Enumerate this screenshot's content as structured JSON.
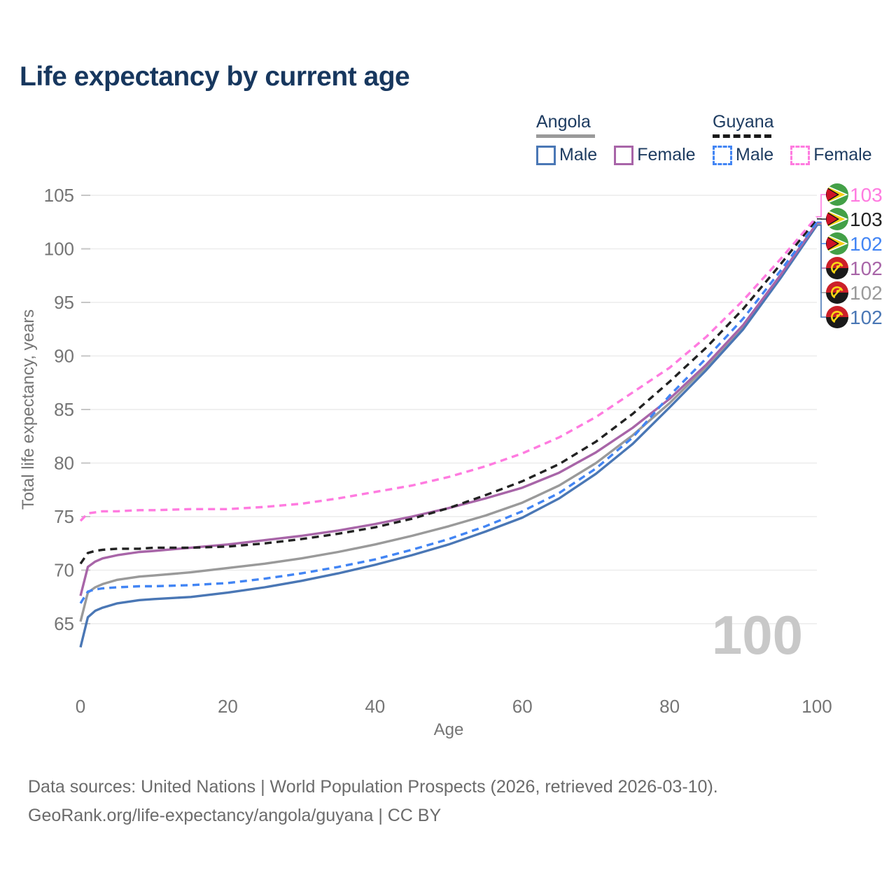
{
  "title": "Life expectancy by current age",
  "watermark_age": "100",
  "legend": {
    "groups": [
      {
        "label": "Angola",
        "line_style": "solid",
        "line_color": "#9a9a9a",
        "items": [
          {
            "label": "Male",
            "color": "#4a77b5",
            "style": "solid"
          },
          {
            "label": "Female",
            "color": "#a865a8",
            "style": "solid"
          }
        ]
      },
      {
        "label": "Guyana",
        "line_style": "dashed",
        "line_color": "#1a1a1a",
        "items": [
          {
            "label": "Male",
            "color": "#4285f4",
            "style": "dashed"
          },
          {
            "label": "Female",
            "color": "#ff7be0",
            "style": "dashed"
          }
        ]
      }
    ]
  },
  "footer": {
    "line1": "Data sources: United Nations | World Population Prospects (2026, retrieved 2026-03-10).",
    "line2": "GeoRank.org/life-expectancy/angola/guyana | CC BY"
  },
  "chart_data": {
    "type": "line",
    "title": "Life expectancy by current age",
    "xlabel": "Age",
    "ylabel": "Total life expectancy, years",
    "xlim": [
      0,
      100
    ],
    "ylim": [
      62,
      106
    ],
    "xticks": [
      0,
      20,
      40,
      60,
      80,
      100
    ],
    "yticks": [
      65,
      70,
      75,
      80,
      85,
      90,
      95,
      100,
      105
    ],
    "grid": true,
    "legend_position": "top-right",
    "x": [
      0,
      1,
      2,
      3,
      5,
      8,
      10,
      15,
      20,
      25,
      30,
      35,
      40,
      45,
      50,
      55,
      60,
      65,
      70,
      75,
      80,
      85,
      90,
      95,
      100
    ],
    "series": [
      {
        "name": "Angola Male",
        "country": "angola",
        "sex": "male",
        "style": "solid",
        "color": "#4a77b5",
        "end_label": "102",
        "values": [
          62.8,
          65.6,
          66.2,
          66.5,
          66.9,
          67.2,
          67.3,
          67.5,
          67.9,
          68.4,
          69.0,
          69.7,
          70.5,
          71.4,
          72.4,
          73.6,
          74.9,
          76.7,
          79.0,
          81.8,
          85.2,
          88.7,
          92.5,
          97.2,
          102.2
        ]
      },
      {
        "name": "Angola Female",
        "country": "angola",
        "sex": "female",
        "style": "solid",
        "color": "#a865a8",
        "end_label": "102",
        "values": [
          67.6,
          70.3,
          70.8,
          71.1,
          71.4,
          71.7,
          71.8,
          72.1,
          72.4,
          72.8,
          73.2,
          73.7,
          74.3,
          75.0,
          75.8,
          76.7,
          77.7,
          79.1,
          81.0,
          83.3,
          86.0,
          89.2,
          92.9,
          97.5,
          102.4
        ]
      },
      {
        "name": "Angola Both sexes",
        "country": "angola",
        "sex": "both",
        "style": "solid",
        "color": "#9a9a9a",
        "end_label": "102",
        "values": [
          65.2,
          67.9,
          68.4,
          68.7,
          69.1,
          69.4,
          69.5,
          69.8,
          70.2,
          70.6,
          71.1,
          71.7,
          72.4,
          73.2,
          74.1,
          75.1,
          76.3,
          77.9,
          80.0,
          82.6,
          85.6,
          89.0,
          92.7,
          97.3,
          102.3
        ]
      },
      {
        "name": "Guyana Male",
        "country": "guyana",
        "sex": "male",
        "style": "dashed",
        "color": "#4285f4",
        "end_label": "102",
        "values": [
          66.9,
          68.0,
          68.2,
          68.3,
          68.4,
          68.5,
          68.5,
          68.6,
          68.8,
          69.2,
          69.7,
          70.3,
          71.0,
          71.9,
          72.9,
          74.1,
          75.5,
          77.2,
          79.5,
          82.4,
          86.3,
          89.8,
          93.5,
          97.9,
          102.5
        ]
      },
      {
        "name": "Guyana Female",
        "country": "guyana",
        "sex": "female",
        "style": "dashed",
        "color": "#ff7be0",
        "end_label": "103",
        "values": [
          74.6,
          75.3,
          75.4,
          75.5,
          75.5,
          75.6,
          75.6,
          75.7,
          75.7,
          75.9,
          76.2,
          76.7,
          77.3,
          77.9,
          78.7,
          79.7,
          80.9,
          82.4,
          84.3,
          86.6,
          88.9,
          91.8,
          95.2,
          99.0,
          103.0
        ]
      },
      {
        "name": "Guyana Both sexes",
        "country": "guyana",
        "sex": "both",
        "style": "dashed",
        "color": "#222222",
        "end_label": "103",
        "values": [
          70.6,
          71.6,
          71.8,
          71.9,
          72.0,
          72.0,
          72.1,
          72.1,
          72.2,
          72.5,
          72.9,
          73.4,
          74.0,
          74.8,
          75.8,
          77.0,
          78.3,
          79.9,
          82.0,
          84.6,
          87.6,
          90.8,
          94.4,
          98.5,
          102.8
        ]
      }
    ]
  }
}
